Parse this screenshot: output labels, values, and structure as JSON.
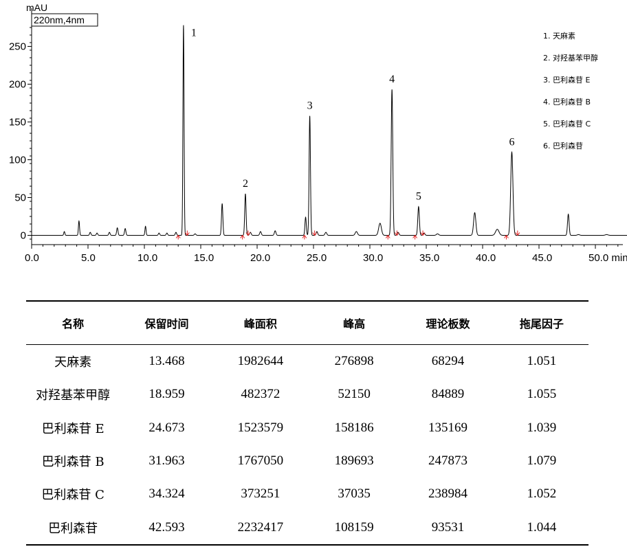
{
  "chart_data": {
    "type": "line",
    "title": "",
    "method_label": "220nm,4nm",
    "ylabel": "mAU",
    "xlabel": "min",
    "xlim": [
      0,
      53
    ],
    "ylim": [
      -10,
      280
    ],
    "x_ticks": [
      0,
      5,
      10,
      15,
      20,
      25,
      30,
      35,
      40,
      45,
      50
    ],
    "x_tick_labels": [
      "0.0",
      "5.0",
      "10.0",
      "15.0",
      "20.0",
      "25.0",
      "30.0",
      "35.0",
      "40.0",
      "45.0",
      "50.0 min"
    ],
    "y_ticks": [
      0,
      50,
      100,
      150,
      200,
      250
    ],
    "y_tick_labels": [
      "0",
      "50",
      "100",
      "150",
      "200",
      "250"
    ],
    "grid": false,
    "legend_position": "top-right",
    "legend": [
      "1. 天麻素",
      "2. 对羟基苯甲醇",
      "3. 巴利森苷 E",
      "4. 巴利森苷 B",
      "5. 巴利森苷 C",
      "6. 巴利森苷"
    ],
    "peak_labels": [
      {
        "label": "1",
        "x": 13.47,
        "y": 278
      },
      {
        "label": "2",
        "x": 18.96,
        "y": 55
      },
      {
        "label": "3",
        "x": 24.67,
        "y": 158
      },
      {
        "label": "4",
        "x": 31.96,
        "y": 193
      },
      {
        "label": "5",
        "x": 34.32,
        "y": 38
      },
      {
        "label": "6",
        "x": 42.59,
        "y": 110
      }
    ],
    "peaks": [
      {
        "x": 2.9,
        "h": 5,
        "w": 0.05
      },
      {
        "x": 4.2,
        "h": 19,
        "w": 0.05
      },
      {
        "x": 5.2,
        "h": 4,
        "w": 0.06
      },
      {
        "x": 5.8,
        "h": 3,
        "w": 0.06
      },
      {
        "x": 6.9,
        "h": 4,
        "w": 0.06
      },
      {
        "x": 7.6,
        "h": 10,
        "w": 0.06
      },
      {
        "x": 8.3,
        "h": 9,
        "w": 0.06
      },
      {
        "x": 10.1,
        "h": 12,
        "w": 0.05
      },
      {
        "x": 11.3,
        "h": 3,
        "w": 0.06
      },
      {
        "x": 12.0,
        "h": 3,
        "w": 0.06
      },
      {
        "x": 12.8,
        "h": 4,
        "w": 0.06
      },
      {
        "x": 13.47,
        "h": 278,
        "w": 0.05
      },
      {
        "x": 14.5,
        "h": 2,
        "w": 0.07
      },
      {
        "x": 16.9,
        "h": 42,
        "w": 0.06
      },
      {
        "x": 18.96,
        "h": 55,
        "w": 0.06
      },
      {
        "x": 19.4,
        "h": 4,
        "w": 0.07
      },
      {
        "x": 20.3,
        "h": 5,
        "w": 0.07
      },
      {
        "x": 21.6,
        "h": 6,
        "w": 0.07
      },
      {
        "x": 24.3,
        "h": 24,
        "w": 0.06
      },
      {
        "x": 24.67,
        "h": 158,
        "w": 0.06
      },
      {
        "x": 25.3,
        "h": 5,
        "w": 0.07
      },
      {
        "x": 26.1,
        "h": 4,
        "w": 0.08
      },
      {
        "x": 28.8,
        "h": 5,
        "w": 0.1
      },
      {
        "x": 30.9,
        "h": 16,
        "w": 0.12
      },
      {
        "x": 31.96,
        "h": 193,
        "w": 0.07
      },
      {
        "x": 32.5,
        "h": 4,
        "w": 0.08
      },
      {
        "x": 34.32,
        "h": 38,
        "w": 0.07
      },
      {
        "x": 34.8,
        "h": 3,
        "w": 0.08
      },
      {
        "x": 36.0,
        "h": 2,
        "w": 0.1
      },
      {
        "x": 39.3,
        "h": 30,
        "w": 0.1
      },
      {
        "x": 41.3,
        "h": 8,
        "w": 0.15
      },
      {
        "x": 42.59,
        "h": 110,
        "w": 0.1
      },
      {
        "x": 47.6,
        "h": 28,
        "w": 0.07
      },
      {
        "x": 48.5,
        "h": 1,
        "w": 0.1
      },
      {
        "x": 51.0,
        "h": 1,
        "w": 0.12
      }
    ],
    "integration_markers": [
      13.0,
      13.8,
      18.7,
      19.2,
      24.2,
      25.1,
      31.6,
      32.4,
      34.0,
      34.7,
      42.1,
      43.1
    ],
    "colors": {
      "trace": "#000000",
      "marker": "#e02020"
    }
  },
  "table": {
    "headers": [
      "名称",
      "保留时间",
      "峰面积",
      "峰高",
      "理论板数",
      "拖尾因子"
    ],
    "rows": [
      [
        "天麻素",
        "13.468",
        "1982644",
        "276898",
        "68294",
        "1.051"
      ],
      [
        "对羟基苯甲醇",
        "18.959",
        "482372",
        "52150",
        "84889",
        "1.055"
      ],
      [
        "巴利森苷 E",
        "24.673",
        "1523579",
        "158186",
        "135169",
        "1.039"
      ],
      [
        "巴利森苷 B",
        "31.963",
        "1767050",
        "189693",
        "247873",
        "1.079"
      ],
      [
        "巴利森苷 C",
        "34.324",
        "373251",
        "37035",
        "238984",
        "1.052"
      ],
      [
        "巴利森苷",
        "42.593",
        "2232417",
        "108159",
        "93531",
        "1.044"
      ]
    ]
  }
}
